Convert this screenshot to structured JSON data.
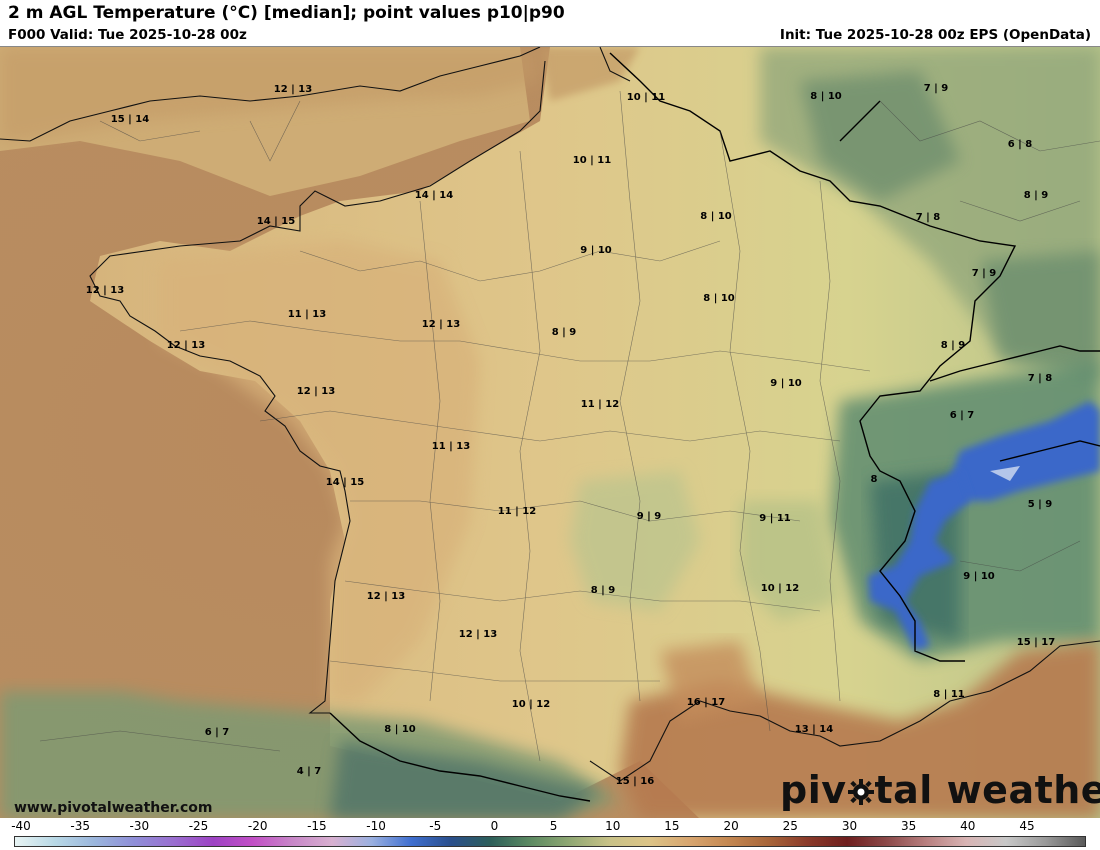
{
  "header": {
    "title": "2 m AGL Temperature (°C) [median]; point values p10|p90",
    "valid": "F000 Valid: Tue 2025-10-28 00z",
    "init": "Init: Tue 2025-10-28 00z EPS (OpenData)"
  },
  "footer": {
    "website": "www.pivotalweather.com",
    "brand_part1": "piv",
    "brand_part2": "tal weather"
  },
  "colorbar": {
    "ticks": [
      "-40",
      "-35",
      "-30",
      "-25",
      "-20",
      "-15",
      "-10",
      "-5",
      "0",
      "5",
      "10",
      "15",
      "20",
      "25",
      "30",
      "35",
      "40",
      "45"
    ]
  },
  "point_values": [
    {
      "label": "12 | 13"
    },
    {
      "label": "15 | 14"
    },
    {
      "label": "10 | 11"
    },
    {
      "label": "8 | 10"
    },
    {
      "label": "7 | 9"
    },
    {
      "label": "10 | 11"
    },
    {
      "label": "6 | 8"
    },
    {
      "label": "8 | 9"
    },
    {
      "label": "14 | 14"
    },
    {
      "label": "14 | 15"
    },
    {
      "label": "8 | 10"
    },
    {
      "label": "7 | 8"
    },
    {
      "label": "9 | 10"
    },
    {
      "label": "12 | 13"
    },
    {
      "label": "7 | 9"
    },
    {
      "label": "11 | 13"
    },
    {
      "label": "12 | 13"
    },
    {
      "label": "8 | 10"
    },
    {
      "label": "8 | 9"
    },
    {
      "label": "12 | 13"
    },
    {
      "label": "8 | 9"
    },
    {
      "label": "12 | 13"
    },
    {
      "label": "9 | 10"
    },
    {
      "label": "7 | 8"
    },
    {
      "label": "11 | 12"
    },
    {
      "label": "6 | 7"
    },
    {
      "label": "11 | 13"
    },
    {
      "label": "14 | 15"
    },
    {
      "label": "8"
    },
    {
      "label": "11 | 12"
    },
    {
      "label": "9 | 9"
    },
    {
      "label": "9 | 11"
    },
    {
      "label": "5 | 9"
    },
    {
      "label": "12 | 13"
    },
    {
      "label": "8 | 9"
    },
    {
      "label": "10 | 12"
    },
    {
      "label": "9 | 10"
    },
    {
      "label": "12 | 13"
    },
    {
      "label": "15 | 17"
    },
    {
      "label": "16 | 17"
    },
    {
      "label": "8 | 11"
    },
    {
      "label": "10 | 12"
    },
    {
      "label": "6 | 7"
    },
    {
      "label": "8 | 10"
    },
    {
      "label": "13 | 14"
    },
    {
      "label": "4 | 7"
    },
    {
      "label": "15 | 16"
    }
  ]
}
